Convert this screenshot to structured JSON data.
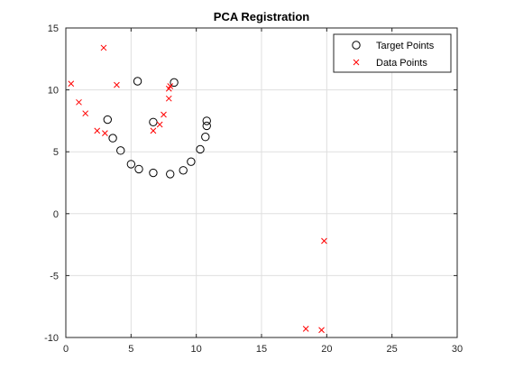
{
  "chart_data": {
    "type": "scatter",
    "title": "PCA Registration",
    "xlabel": "",
    "ylabel": "",
    "xlim": [
      0,
      30
    ],
    "ylim": [
      -10,
      15
    ],
    "xticks": [
      0,
      5,
      10,
      15,
      20,
      25,
      30
    ],
    "yticks": [
      -10,
      -5,
      0,
      5,
      10,
      15
    ],
    "grid": true,
    "legend_position": "top-right",
    "series": [
      {
        "name": "Target Points",
        "marker": "circle",
        "color": "#000000",
        "points": [
          [
            3.2,
            7.6
          ],
          [
            3.6,
            6.1
          ],
          [
            4.2,
            5.1
          ],
          [
            5.0,
            4.0
          ],
          [
            5.6,
            3.6
          ],
          [
            6.7,
            3.3
          ],
          [
            8.0,
            3.2
          ],
          [
            9.0,
            3.5
          ],
          [
            9.6,
            4.2
          ],
          [
            10.3,
            5.2
          ],
          [
            10.7,
            6.2
          ],
          [
            10.8,
            7.1
          ],
          [
            10.8,
            7.5
          ],
          [
            5.5,
            10.7
          ],
          [
            6.7,
            7.4
          ],
          [
            8.3,
            10.6
          ]
        ]
      },
      {
        "name": "Data Points",
        "marker": "x",
        "color": "#ff0000",
        "points": [
          [
            0.4,
            10.5
          ],
          [
            1.0,
            9.0
          ],
          [
            1.5,
            8.1
          ],
          [
            2.4,
            6.7
          ],
          [
            3.0,
            6.5
          ],
          [
            2.9,
            13.4
          ],
          [
            3.9,
            10.4
          ],
          [
            6.7,
            6.7
          ],
          [
            7.2,
            7.2
          ],
          [
            7.5,
            8.0
          ],
          [
            7.9,
            9.3
          ],
          [
            7.9,
            10.1
          ],
          [
            8.0,
            10.3
          ],
          [
            18.4,
            -9.3
          ],
          [
            19.6,
            -9.4
          ],
          [
            19.8,
            -2.2
          ]
        ]
      }
    ]
  }
}
